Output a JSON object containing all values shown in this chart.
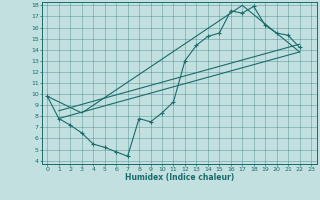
{
  "xlabel": "Humidex (Indice chaleur)",
  "bg_color": "#c2e0e0",
  "line_color": "#1a6b6b",
  "xlim": [
    -0.5,
    23.5
  ],
  "ylim": [
    3.7,
    18.3
  ],
  "xticks": [
    0,
    1,
    2,
    3,
    4,
    5,
    6,
    7,
    8,
    9,
    10,
    11,
    12,
    13,
    14,
    15,
    16,
    17,
    18,
    19,
    20,
    21,
    22,
    23
  ],
  "yticks": [
    4,
    5,
    6,
    7,
    8,
    9,
    10,
    11,
    12,
    13,
    14,
    15,
    16,
    17,
    18
  ],
  "main_x": [
    0,
    1,
    2,
    3,
    4,
    5,
    6,
    7,
    8,
    9,
    10,
    11,
    12,
    13,
    14,
    15,
    16,
    17,
    18,
    19,
    20,
    21,
    22
  ],
  "main_y": [
    9.8,
    7.8,
    7.2,
    6.5,
    5.5,
    5.2,
    4.8,
    4.4,
    7.8,
    7.5,
    8.3,
    9.3,
    13.0,
    14.4,
    15.2,
    15.5,
    17.5,
    17.3,
    17.9,
    16.2,
    15.5,
    15.3,
    14.2
  ],
  "line2_x": [
    0,
    3,
    17,
    22
  ],
  "line2_y": [
    9.8,
    8.3,
    18.0,
    13.8
  ],
  "line3_x": [
    1,
    22
  ],
  "line3_y": [
    7.8,
    13.8
  ],
  "line4_x": [
    1,
    22
  ],
  "line4_y": [
    8.5,
    14.5
  ]
}
